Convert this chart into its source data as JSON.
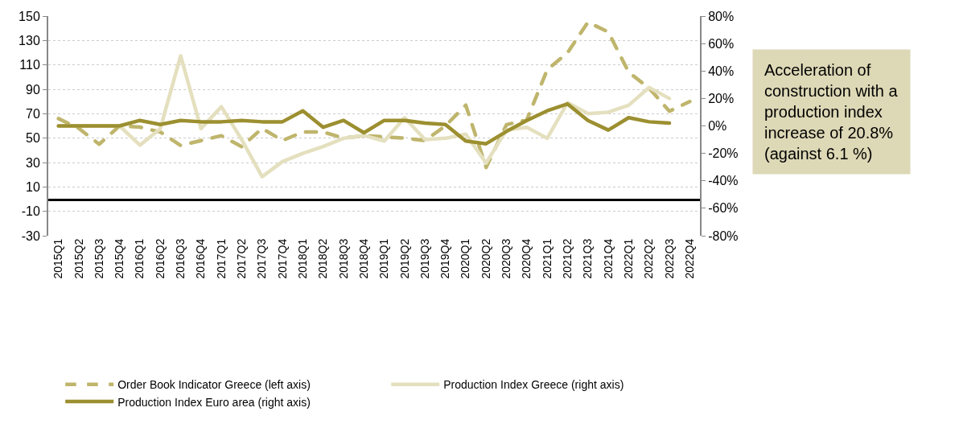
{
  "chart_data": {
    "type": "line",
    "categories": [
      "2015Q1",
      "2015Q2",
      "2015Q3",
      "2015Q4",
      "2016Q1",
      "2016Q2",
      "2016Q3",
      "2016Q4",
      "2017Q1",
      "2017Q2",
      "2017Q3",
      "2017Q4",
      "2018Q1",
      "2018Q2",
      "2018Q3",
      "2018Q4",
      "2019Q1",
      "2019Q2",
      "2019Q3",
      "2019Q4",
      "2020Q1",
      "2020Q2",
      "2020Q3",
      "2020Q4",
      "2021Q1",
      "2021Q2",
      "2021Q3",
      "2021Q4",
      "2022Q1",
      "2022Q2",
      "2022Q3",
      "2022Q4"
    ],
    "series": [
      {
        "name": "Order Book Indicator Greece (left axis)",
        "color": "#bfb56c",
        "line_style": "dashed",
        "values": [
          66,
          58,
          45,
          60,
          59,
          55,
          44,
          48,
          52,
          43,
          58,
          48,
          55,
          55,
          50,
          52,
          51,
          50,
          48,
          60,
          77,
          26,
          61,
          65,
          106,
          120,
          145,
          137,
          104,
          91,
          72,
          80
        ]
      },
      {
        "name": "Production Index Greece (right axis)",
        "color": "#e4e0bf",
        "axis": "y2",
        "values": [
          0,
          0,
          0,
          0,
          -14,
          -2,
          51,
          -2,
          14,
          -10,
          -37,
          -26,
          -20,
          -15,
          -9,
          -7,
          -11,
          6,
          -10,
          -9,
          -6,
          -27,
          -3,
          -1,
          -9,
          17,
          9,
          10,
          15,
          28,
          20,
          null
        ]
      },
      {
        "name": "Production Index Euro area (right axis)",
        "color": "#9c8f30",
        "axis": "y2",
        "values": [
          0,
          0,
          0,
          0,
          4,
          1,
          4,
          3,
          3,
          4,
          3,
          3,
          11,
          -1,
          4,
          -5,
          4,
          4,
          2,
          1,
          -11,
          -13,
          -4,
          4,
          11,
          16,
          4,
          -3,
          6,
          3,
          2,
          null
        ]
      }
    ],
    "ylim": [
      -30,
      150
    ],
    "yticks": [
      -30,
      -10,
      10,
      30,
      50,
      70,
      90,
      110,
      130,
      150
    ],
    "y2lim": [
      -80,
      80
    ],
    "y2ticks": [
      {
        "value": -80,
        "label": "-80%"
      },
      {
        "value": -60,
        "label": "-60%"
      },
      {
        "value": -40,
        "label": "-40%"
      },
      {
        "value": -20,
        "label": "-20%"
      },
      {
        "value": 0,
        "label": "0%"
      },
      {
        "value": 20,
        "label": "20%"
      },
      {
        "value": 40,
        "label": "40%"
      },
      {
        "value": 60,
        "label": "60%"
      },
      {
        "value": 80,
        "label": "80%"
      }
    ],
    "grid": "y",
    "legend": "bottom",
    "line_style": "solid",
    "marker": "none",
    "annotations": [
      "Acceleration of construction with a production index increase of 20.8% (against 6.1 %)"
    ]
  }
}
